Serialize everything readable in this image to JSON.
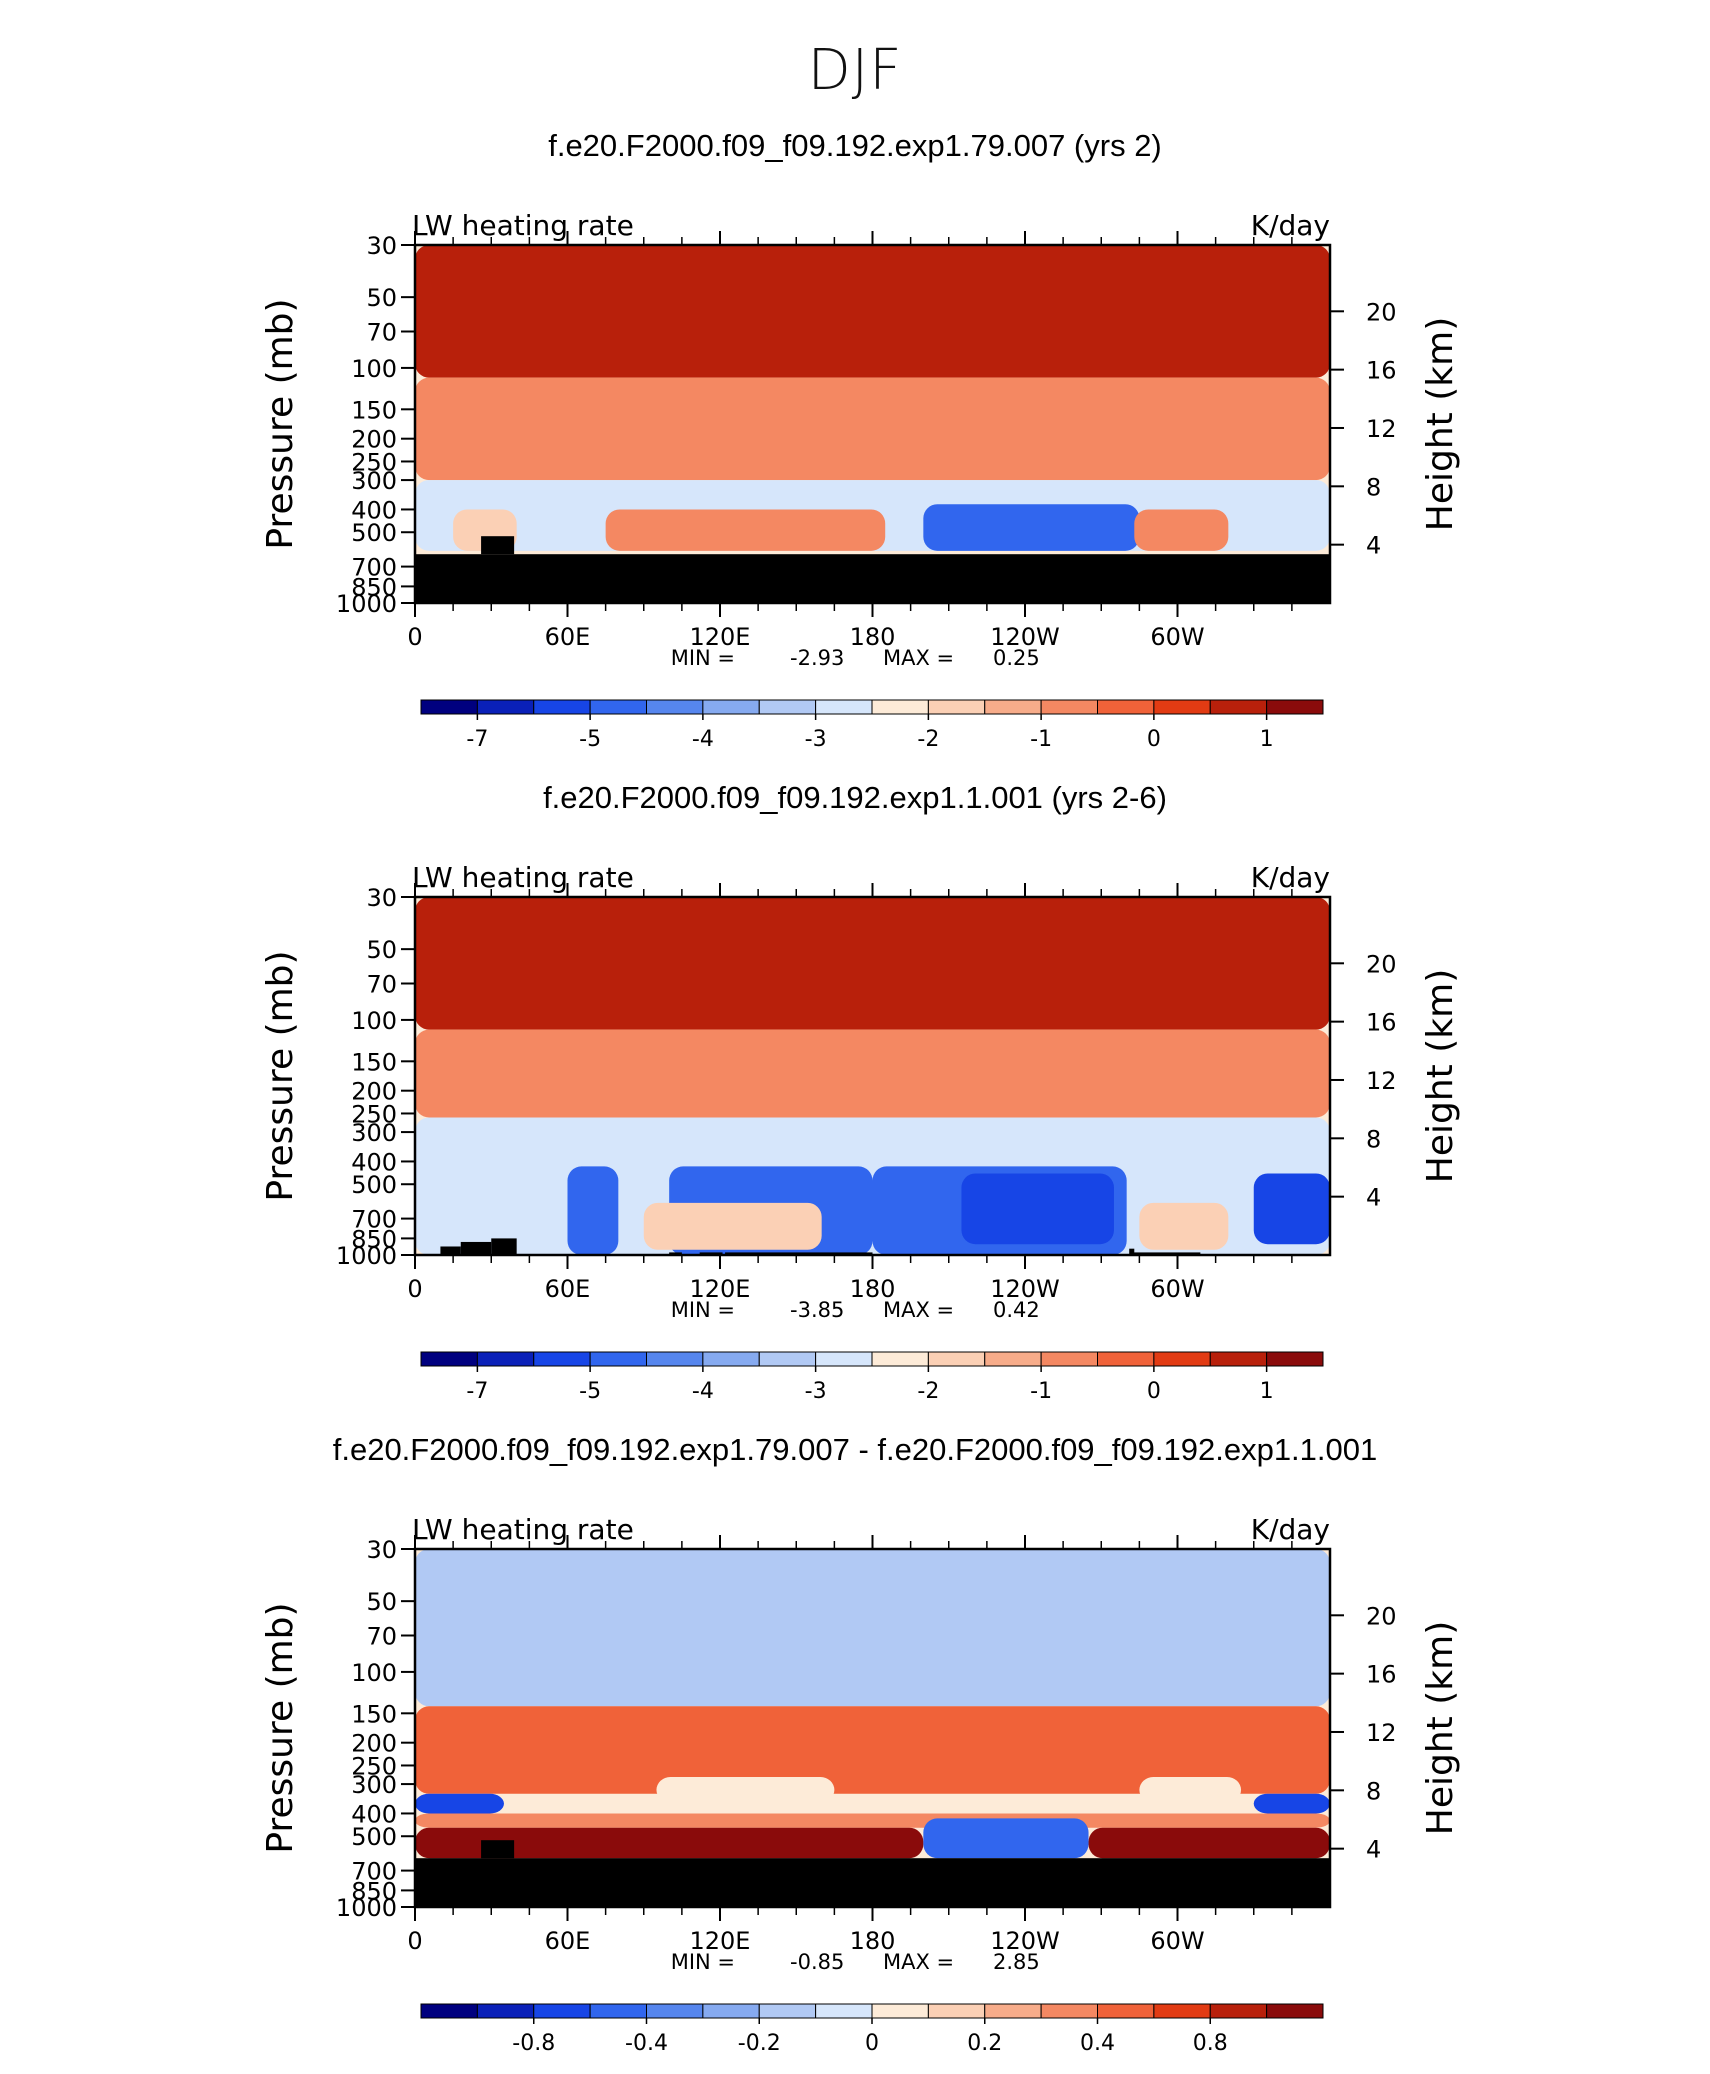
{
  "title": "DJF",
  "chart_data": [
    {
      "type": "heatmap",
      "title": "f.e20.F2000.f09_f09.192.exp1.79.007 (yrs 2)",
      "left_label": "LW heating rate",
      "right_label": "K/day",
      "ylabel": "Pressure (mb)",
      "y2label": "Height (km)",
      "x_ticks": [
        "0",
        "60E",
        "120E",
        "180",
        "120W",
        "60W"
      ],
      "y_ticks": [
        "30",
        "50",
        "70",
        "100",
        "150",
        "200",
        "250",
        "300",
        "400",
        "500",
        "700",
        "850",
        "1000"
      ],
      "y2_ticks": [
        "20",
        "16",
        "12",
        "8",
        "4"
      ],
      "stats": {
        "min_label": "MIN =",
        "min": "-2.93",
        "max_label": "MAX =",
        "max": "0.25"
      },
      "colorbar": {
        "ticks": [
          "-7",
          "-5",
          "-4",
          "-3",
          "-2",
          "-1",
          "0",
          "1"
        ],
        "colors": [
          "#00007f",
          "#0a20b8",
          "#1745e6",
          "#3166ee",
          "#5686ee",
          "#86aaf0",
          "#b1c9f4",
          "#d6e6fb",
          "#fdebd8",
          "#fbd0b5",
          "#f7ac8a",
          "#f48862",
          "#f06239",
          "#e23b13",
          "#b8200b",
          "#8a0b0b"
        ]
      },
      "terrain_top_mb": 620,
      "fields": [
        {
          "level": 0.9,
          "band": [
            30,
            110
          ],
          "ranges": [
            [
              0,
              360
            ]
          ]
        },
        {
          "level": 0.7,
          "band": [
            110,
            300
          ],
          "ranges": [
            [
              0,
              360
            ]
          ]
        },
        {
          "level": 0.45,
          "band": [
            300,
            600
          ],
          "ranges": [
            [
              0,
              360
            ]
          ]
        },
        {
          "level": 0.2,
          "band": [
            380,
            600
          ],
          "ranges": [
            [
              200,
              285
            ]
          ]
        },
        {
          "level": 0.75,
          "band": [
            400,
            600
          ],
          "ranges": [
            [
              75,
              185
            ],
            [
              283,
              320
            ]
          ]
        },
        {
          "level": 0.6,
          "band": [
            400,
            600
          ],
          "ranges": [
            [
              15,
              40
            ]
          ]
        }
      ]
    },
    {
      "type": "heatmap",
      "title": "f.e20.F2000.f09_f09.192.exp1.1.001 (yrs 2-6)",
      "left_label": "LW heating rate",
      "right_label": "K/day",
      "ylabel": "Pressure (mb)",
      "y2label": "Height (km)",
      "x_ticks": [
        "0",
        "60E",
        "120E",
        "180",
        "120W",
        "60W"
      ],
      "y_ticks": [
        "30",
        "50",
        "70",
        "100",
        "150",
        "200",
        "250",
        "300",
        "400",
        "500",
        "700",
        "850",
        "1000"
      ],
      "y2_ticks": [
        "20",
        "16",
        "12",
        "8",
        "4"
      ],
      "stats": {
        "min_label": "MIN =",
        "min": "-3.85",
        "max_label": "MAX =",
        "max": "0.42"
      },
      "colorbar": {
        "ticks": [
          "-7",
          "-5",
          "-4",
          "-3",
          "-2",
          "-1",
          "0",
          "1"
        ],
        "colors": [
          "#00007f",
          "#0a20b8",
          "#1745e6",
          "#3166ee",
          "#5686ee",
          "#86aaf0",
          "#b1c9f4",
          "#d6e6fb",
          "#fdebd8",
          "#fbd0b5",
          "#f7ac8a",
          "#f48862",
          "#f06239",
          "#e23b13",
          "#b8200b",
          "#8a0b0b"
        ]
      },
      "terrain_top_mb": null,
      "fields": [
        {
          "level": 0.9,
          "band": [
            30,
            110
          ],
          "ranges": [
            [
              0,
              360
            ]
          ]
        },
        {
          "level": 0.7,
          "band": [
            110,
            260
          ],
          "ranges": [
            [
              0,
              360
            ]
          ]
        },
        {
          "level": 0.45,
          "band": [
            260,
            1000
          ],
          "ranges": [
            [
              0,
              360
            ]
          ]
        },
        {
          "level": 0.2,
          "band": [
            420,
            1000
          ],
          "ranges": [
            [
              60,
              80
            ],
            [
              100,
              180
            ],
            [
              180,
              280
            ]
          ]
        },
        {
          "level": 0.6,
          "band": [
            600,
            950
          ],
          "ranges": [
            [
              90,
              160
            ],
            [
              285,
              320
            ]
          ]
        },
        {
          "level": 0.1,
          "band": [
            450,
            900
          ],
          "ranges": [
            [
              215,
              275
            ],
            [
              330,
              360
            ]
          ]
        }
      ]
    },
    {
      "type": "heatmap",
      "title": "f.e20.F2000.f09_f09.192.exp1.79.007 - f.e20.F2000.f09_f09.192.exp1.1.001",
      "left_label": "LW heating rate",
      "right_label": "K/day",
      "ylabel": "Pressure (mb)",
      "y2label": "Height (km)",
      "x_ticks": [
        "0",
        "60E",
        "120E",
        "180",
        "120W",
        "60W"
      ],
      "y_ticks": [
        "30",
        "50",
        "70",
        "100",
        "150",
        "200",
        "250",
        "300",
        "400",
        "500",
        "700",
        "850",
        "1000"
      ],
      "y2_ticks": [
        "20",
        "16",
        "12",
        "8",
        "4"
      ],
      "stats": {
        "min_label": "MIN =",
        "min": "-0.85",
        "max_label": "MAX =",
        "max": "2.85"
      },
      "colorbar": {
        "ticks": [
          "-0.8",
          "-0.4",
          "-0.2",
          "0",
          "0.2",
          "0.4",
          "0.8"
        ],
        "colors": [
          "#00007f",
          "#0a20b8",
          "#1745e6",
          "#3166ee",
          "#5686ee",
          "#86aaf0",
          "#b1c9f4",
          "#d6e6fb",
          "#fdebd8",
          "#fbd0b5",
          "#f7ac8a",
          "#f48862",
          "#f06239",
          "#e23b13",
          "#b8200b",
          "#8a0b0b"
        ]
      },
      "terrain_top_mb": 620,
      "fields": [
        {
          "level": 0.42,
          "band": [
            30,
            140
          ],
          "ranges": [
            [
              0,
              360
            ]
          ]
        },
        {
          "level": 0.78,
          "band": [
            140,
            330
          ],
          "ranges": [
            [
              0,
              360
            ]
          ]
        },
        {
          "level": 0.55,
          "band": [
            280,
            360
          ],
          "ranges": [
            [
              95,
              165
            ],
            [
              285,
              325
            ]
          ]
        },
        {
          "level": 0.12,
          "band": [
            330,
            400
          ],
          "ranges": [
            [
              0,
              35
            ],
            [
              330,
              360
            ]
          ]
        },
        {
          "level": 0.75,
          "band": [
            400,
            460
          ],
          "ranges": [
            [
              0,
              360
            ]
          ]
        },
        {
          "level": 0.98,
          "band": [
            460,
            620
          ],
          "ranges": [
            [
              0,
              200
            ],
            [
              265,
              360
            ]
          ]
        },
        {
          "level": 0.2,
          "band": [
            420,
            620
          ],
          "ranges": [
            [
              200,
              265
            ]
          ]
        }
      ]
    }
  ]
}
